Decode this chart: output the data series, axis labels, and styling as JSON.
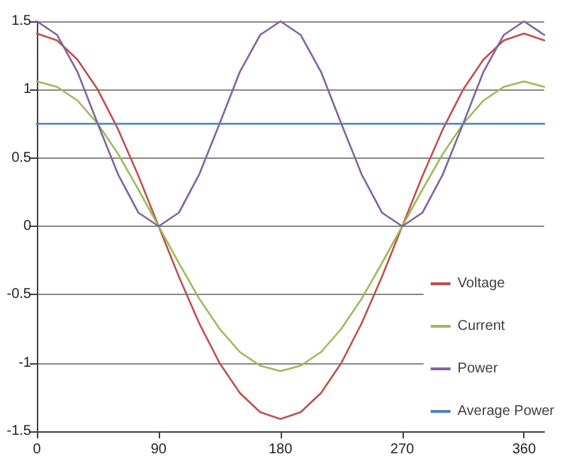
{
  "chart_data": {
    "type": "line",
    "x": [
      0,
      15,
      30,
      45,
      60,
      75,
      90,
      105,
      120,
      135,
      150,
      165,
      180,
      195,
      210,
      225,
      240,
      255,
      270,
      285,
      300,
      315,
      330,
      345,
      360,
      375
    ],
    "xlim": [
      0,
      375
    ],
    "xticks": [
      0,
      90,
      180,
      270,
      360
    ],
    "ylim": [
      -1.5,
      1.5
    ],
    "yticks": [
      -1.5,
      -1,
      -0.5,
      0,
      0.5,
      1,
      1.5
    ],
    "grid": "y",
    "legend": "right",
    "marker": "none",
    "line_style": "solid",
    "series": [
      {
        "name": "Voltage",
        "color": "#c0504d",
        "values": [
          1.41,
          1.36,
          1.22,
          1.0,
          0.71,
          0.37,
          0,
          -0.37,
          -0.71,
          -1.0,
          -1.22,
          -1.36,
          -1.41,
          -1.36,
          -1.22,
          -1.0,
          -0.71,
          -0.37,
          0,
          0.37,
          0.71,
          1.0,
          1.22,
          1.36,
          1.41,
          1.36
        ]
      },
      {
        "name": "Current",
        "color": "#9bbb59",
        "values": [
          1.06,
          1.02,
          0.92,
          0.75,
          0.53,
          0.27,
          0,
          -0.27,
          -0.53,
          -0.75,
          -0.92,
          -1.02,
          -1.06,
          -1.02,
          -0.92,
          -0.75,
          -0.53,
          -0.27,
          0,
          0.27,
          0.53,
          0.75,
          0.92,
          1.02,
          1.06,
          1.02
        ]
      },
      {
        "name": "Power",
        "color": "#8064a2",
        "values": [
          1.5,
          1.4,
          1.13,
          0.75,
          0.38,
          0.1,
          0,
          0.1,
          0.38,
          0.75,
          1.13,
          1.4,
          1.5,
          1.4,
          1.13,
          0.75,
          0.38,
          0.1,
          0,
          0.1,
          0.38,
          0.75,
          1.13,
          1.4,
          1.5,
          1.4
        ]
      },
      {
        "name": "Average Power",
        "color": "#4f81bd",
        "values": [
          0.75,
          0.75,
          0.75,
          0.75,
          0.75,
          0.75,
          0.75,
          0.75,
          0.75,
          0.75,
          0.75,
          0.75,
          0.75,
          0.75,
          0.75,
          0.75,
          0.75,
          0.75,
          0.75,
          0.75,
          0.75,
          0.75,
          0.75,
          0.75,
          0.75,
          0.75
        ]
      }
    ]
  }
}
